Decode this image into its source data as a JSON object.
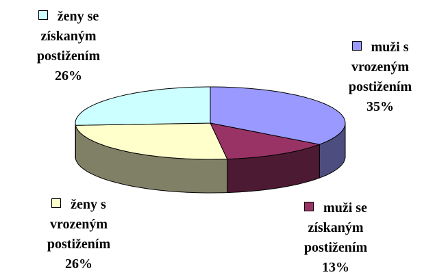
{
  "chart_data": {
    "type": "pie3d",
    "categories": [
      "muži s vrozeným postižením",
      "muži se získaným postižením",
      "ženy s vrozeným postižením",
      "ženy se získaným postižením"
    ],
    "values": [
      35,
      13,
      26,
      26
    ],
    "value_labels": [
      "35%",
      "13%",
      "26%",
      "26%"
    ],
    "colors": [
      "#9999ff",
      "#993366",
      "#ffffcc",
      "#ccffff"
    ]
  }
}
